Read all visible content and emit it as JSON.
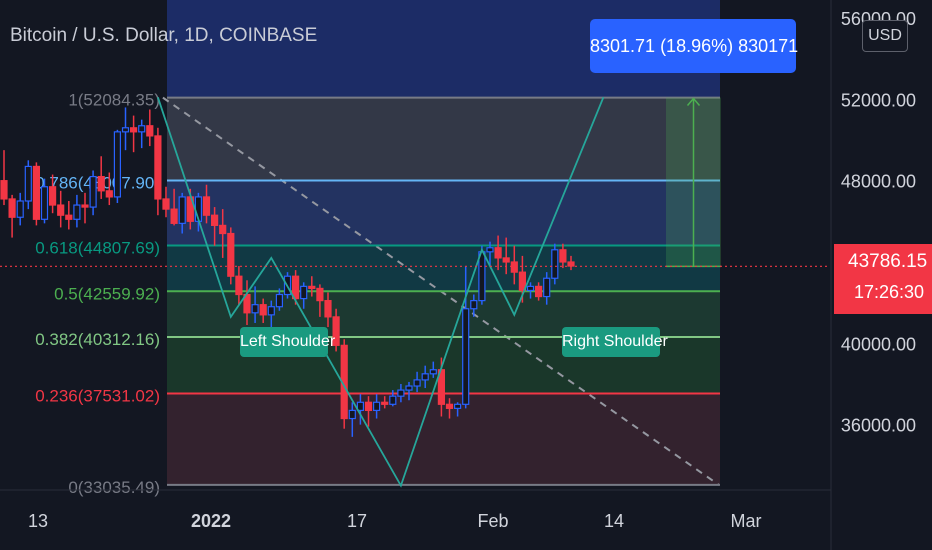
{
  "symbol": {
    "title": "Bitcoin / U.S. Dollar, 1D, COINBASE"
  },
  "currency": "USD",
  "measure": {
    "label": "8301.71 (18.96%) 830171"
  },
  "last_price": {
    "value": "43786.15",
    "countdown": "17:26:30",
    "color": "#f23645"
  },
  "pattern_labels": {
    "left": "Left Shoulder",
    "right": "Right Shoulder"
  },
  "colors": {
    "background": "#131722",
    "up": "#2962ff",
    "down": "#f23645",
    "pattern": "#26a69a",
    "measure": "#2962ff"
  },
  "chart_data": {
    "type": "candlestick",
    "title": "Bitcoin / U.S. Dollar, 1D, COINBASE",
    "ylim": [
      31900,
      56000
    ],
    "y_ticks": [
      56000,
      52000,
      48000,
      40000,
      36000
    ],
    "y_tick_labels": [
      "56000.00",
      "52000.00",
      "48000.00",
      "40000.00",
      "36000.00"
    ],
    "x_ticks": [
      {
        "label": "13",
        "index": 0
      },
      {
        "label": "2022",
        "index": 19
      },
      {
        "label": "17",
        "index": 35
      },
      {
        "label": "Feb",
        "index": 50
      },
      {
        "label": "14",
        "index": 63
      },
      {
        "label": "Mar",
        "index": 78
      }
    ],
    "candles": [
      [
        48000,
        49500,
        46800,
        47100
      ],
      [
        47100,
        47300,
        45200,
        46200
      ],
      [
        46200,
        47400,
        45800,
        47000
      ],
      [
        47000,
        49000,
        46600,
        48700
      ],
      [
        48700,
        48900,
        45800,
        46100
      ],
      [
        46100,
        48100,
        45900,
        47700
      ],
      [
        47700,
        48300,
        46400,
        46800
      ],
      [
        46800,
        47500,
        45700,
        46300
      ],
      [
        46300,
        47000,
        45600,
        46100
      ],
      [
        46100,
        47300,
        45700,
        46800
      ],
      [
        46800,
        47400,
        45900,
        46700
      ],
      [
        46700,
        48500,
        46300,
        48200
      ],
      [
        48200,
        49200,
        47100,
        47500
      ],
      [
        47500,
        48400,
        46800,
        47200
      ],
      [
        47200,
        50500,
        46900,
        50400
      ],
      [
        50400,
        51600,
        49500,
        50600
      ],
      [
        50600,
        51200,
        49400,
        50400
      ],
      [
        50400,
        51000,
        49600,
        50700
      ],
      [
        50700,
        51500,
        49700,
        50200
      ],
      [
        50200,
        50600,
        46300,
        47100
      ],
      [
        47100,
        47700,
        46200,
        46600
      ],
      [
        46600,
        47600,
        45800,
        45900
      ],
      [
        45900,
        47400,
        45400,
        47200
      ],
      [
        47200,
        47600,
        45600,
        46000
      ],
      [
        46000,
        47400,
        45500,
        47200
      ],
      [
        47200,
        47800,
        45900,
        46300
      ],
      [
        46300,
        46700,
        44800,
        45800
      ],
      [
        45800,
        46600,
        44200,
        45400
      ],
      [
        45400,
        45700,
        42900,
        43300
      ],
      [
        43300,
        43800,
        41900,
        42400
      ],
      [
        42400,
        43100,
        40900,
        41500
      ],
      [
        41500,
        42800,
        41000,
        41900
      ],
      [
        41900,
        42200,
        41000,
        41400
      ],
      [
        41400,
        42100,
        40800,
        41800
      ],
      [
        41800,
        42700,
        41600,
        42400
      ],
      [
        42400,
        43500,
        42200,
        43300
      ],
      [
        43300,
        43600,
        41900,
        42200
      ],
      [
        42200,
        43000,
        41700,
        42800
      ],
      [
        42800,
        43300,
        42300,
        42700
      ],
      [
        42700,
        42900,
        41300,
        42100
      ],
      [
        42100,
        42500,
        40800,
        41300
      ],
      [
        41300,
        41700,
        39600,
        39900
      ],
      [
        39900,
        40200,
        35800,
        36300
      ],
      [
        36300,
        37100,
        35400,
        36700
      ],
      [
        36700,
        37500,
        36000,
        37100
      ],
      [
        37100,
        37400,
        35900,
        36700
      ],
      [
        36700,
        37500,
        36300,
        37100
      ],
      [
        37100,
        37400,
        36800,
        37000
      ],
      [
        37000,
        37700,
        36900,
        37400
      ],
      [
        37400,
        38000,
        37100,
        37700
      ],
      [
        37700,
        38100,
        37200,
        37900
      ],
      [
        37900,
        38600,
        37600,
        38200
      ],
      [
        38200,
        38900,
        37800,
        38500
      ],
      [
        38500,
        39100,
        38300,
        38700
      ],
      [
        38700,
        39300,
        36400,
        37000
      ],
      [
        37000,
        37300,
        36300,
        36800
      ],
      [
        36800,
        37100,
        36400,
        37000
      ],
      [
        37000,
        43800,
        36800,
        41700
      ],
      [
        41700,
        42400,
        41300,
        42100
      ],
      [
        42100,
        44800,
        41900,
        44500
      ],
      [
        44500,
        45000,
        43800,
        44700
      ],
      [
        44700,
        45300,
        43600,
        44200
      ],
      [
        44200,
        45200,
        43400,
        44000
      ],
      [
        44000,
        44800,
        42900,
        43500
      ],
      [
        43500,
        44300,
        42000,
        42600
      ],
      [
        42600,
        43000,
        42200,
        42800
      ],
      [
        42800,
        43000,
        42100,
        42300
      ],
      [
        42300,
        43500,
        41900,
        43200
      ],
      [
        43200,
        44900,
        42900,
        44600
      ],
      [
        44600,
        44900,
        43700,
        44000
      ],
      [
        44000,
        44300,
        43600,
        43800
      ]
    ],
    "fib_levels": [
      {
        "ratio": "1",
        "price": 52084.35,
        "label": "1(52084.35)",
        "color": "#787b86"
      },
      {
        "ratio": "0.786",
        "price": 48007.9,
        "label": "0.786(48007.90)",
        "color": "#64b5f6"
      },
      {
        "ratio": "0.618",
        "price": 44807.69,
        "label": "0.618(44807.69)",
        "color": "#089981"
      },
      {
        "ratio": "0.5",
        "price": 42559.92,
        "label": "0.5(42559.92)",
        "color": "#4caf50"
      },
      {
        "ratio": "0.382",
        "price": 40312.16,
        "label": "0.382(40312.16)",
        "color": "#81c784"
      },
      {
        "ratio": "0.236",
        "price": 37531.02,
        "label": "0.236(37531.02)",
        "color": "#f23645"
      },
      {
        "ratio": "0",
        "price": 33035.49,
        "label": "0(33035.49)",
        "color": "#787b86"
      }
    ],
    "fib_fill_colors": [
      "#393e4d",
      "#27386c",
      "#12404a",
      "#1e3f34",
      "#1c3d2c",
      "#3a2430",
      "#4a1f2c"
    ],
    "pattern_points": [
      {
        "i": 19,
        "p": 52100
      },
      {
        "i": 28,
        "p": 41300
      },
      {
        "i": 33,
        "p": 44200
      },
      {
        "i": 49,
        "p": 33000
      },
      {
        "i": 59,
        "p": 44600
      },
      {
        "i": 63,
        "p": 41400
      },
      {
        "i": 74,
        "p": 52100
      }
    ],
    "measure": {
      "from_index": 69,
      "to_index": 75,
      "from_price": 43786.15,
      "to_price": 52087.86
    },
    "trendline": {
      "from_index": 19,
      "from_price": 52084,
      "to_index": 79,
      "to_price": 33035
    },
    "last_price": 43786.15
  }
}
